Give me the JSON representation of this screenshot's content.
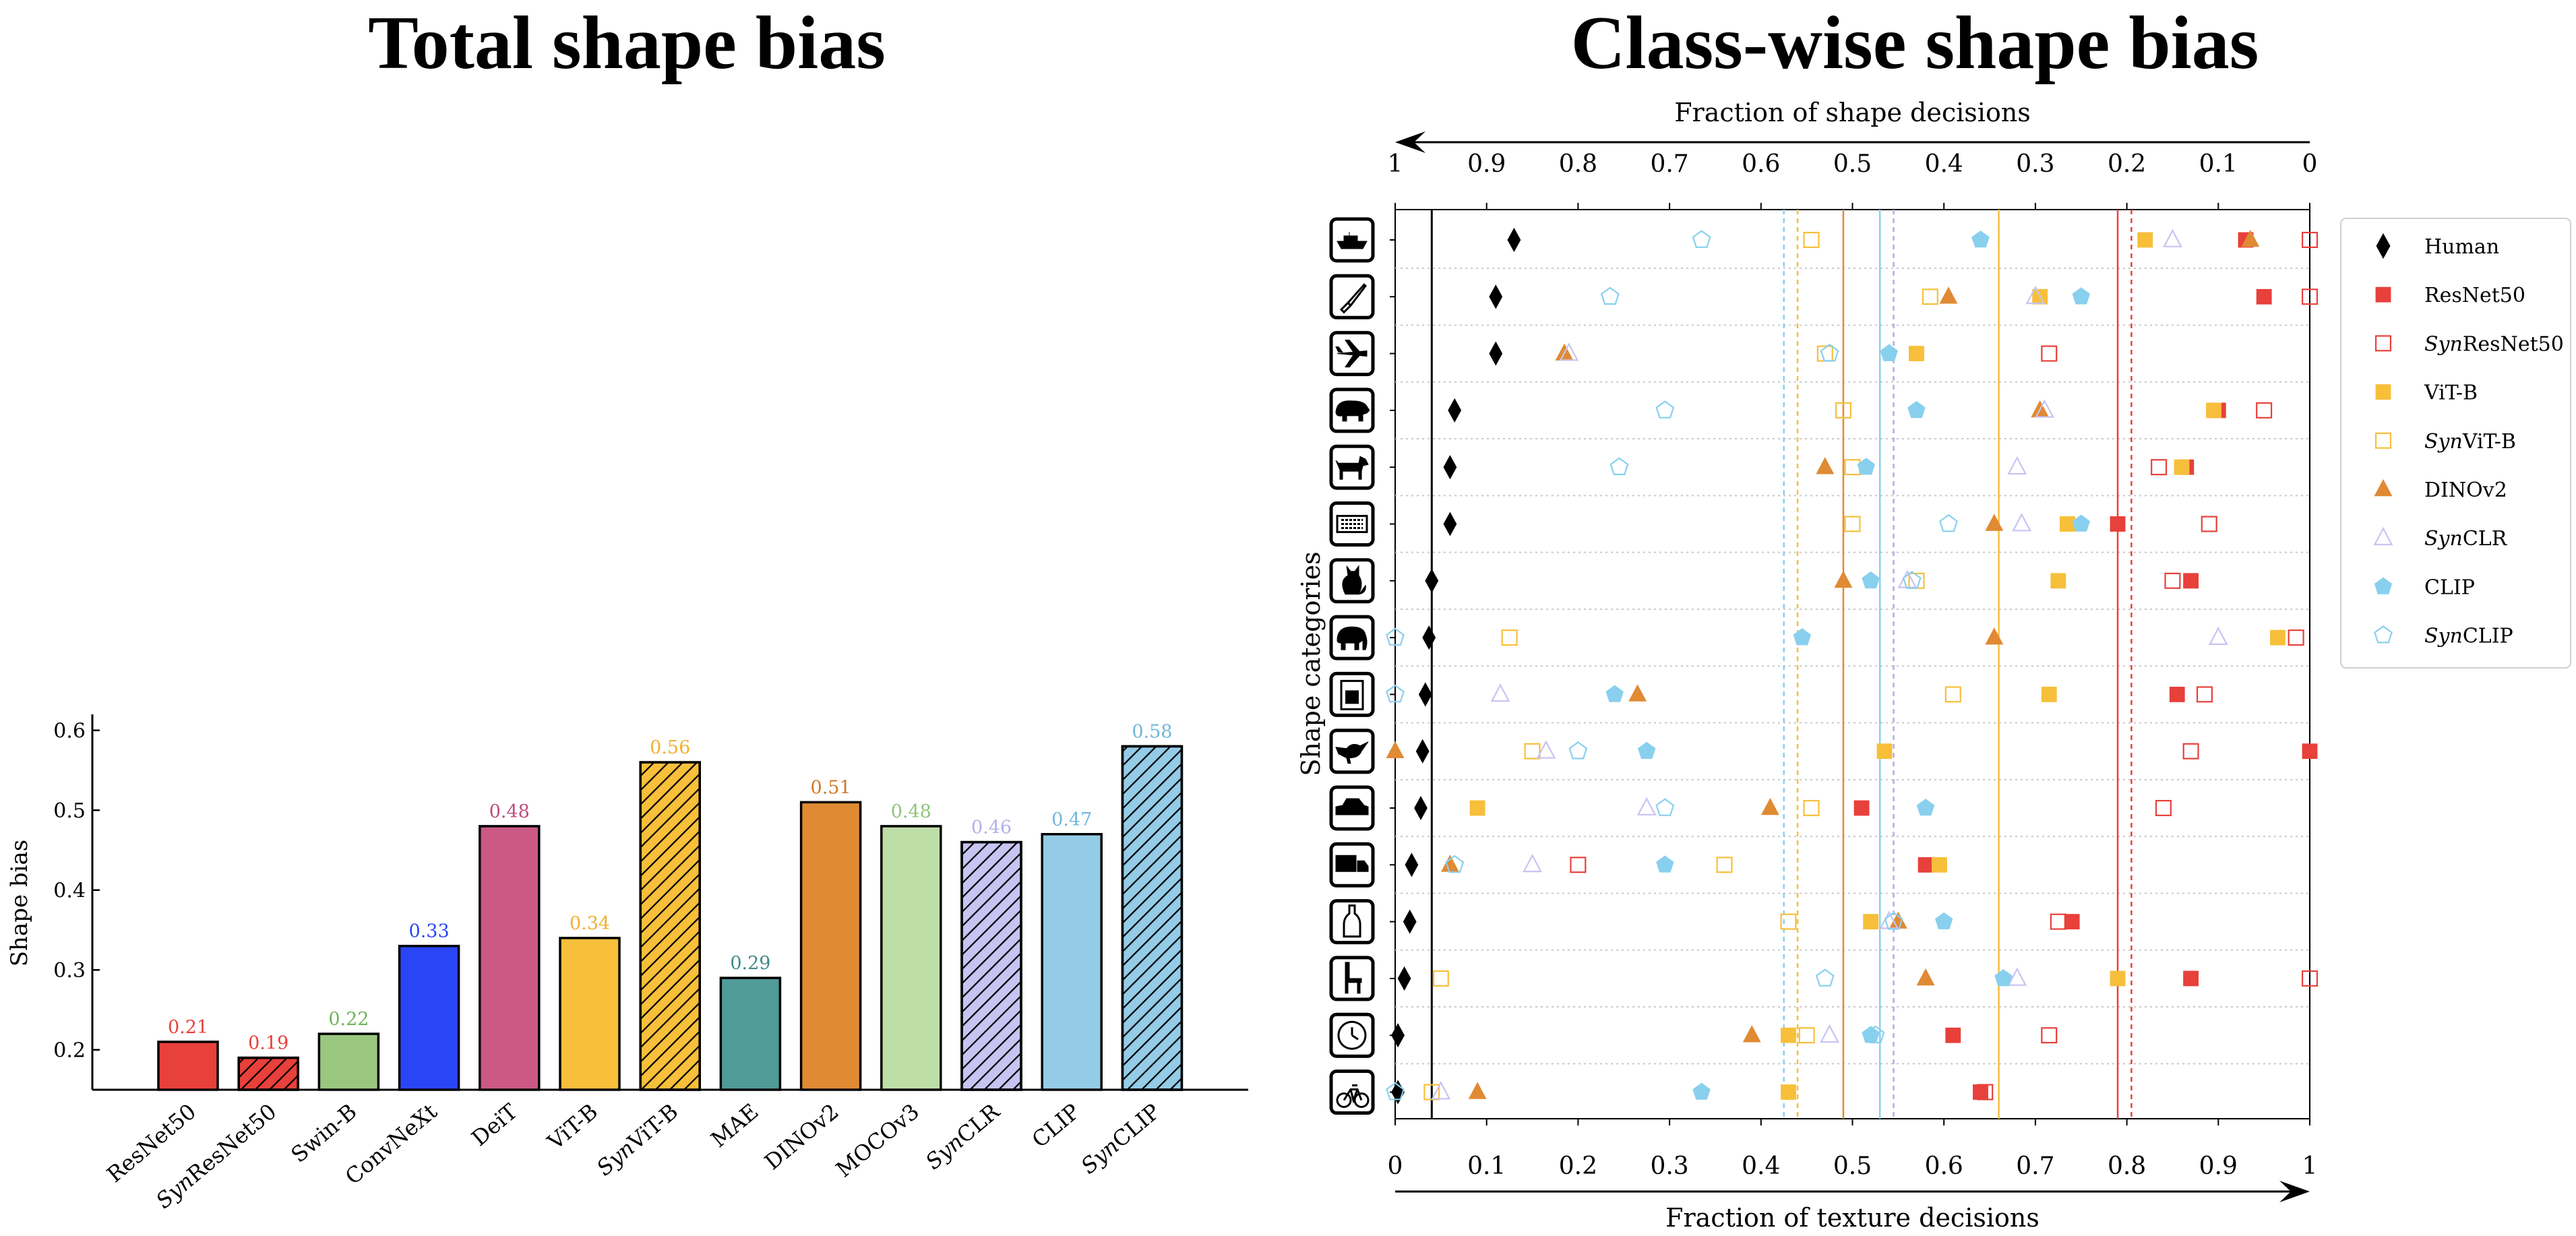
{
  "titles": {
    "left": "Total shape bias",
    "right": "Class-wise shape bias"
  },
  "chart_data": [
    {
      "type": "bar",
      "title": "Total shape bias",
      "ylabel": "Shape bias",
      "xlabel": "",
      "ylim": [
        0.15,
        0.62
      ],
      "yticks": [
        "0.2",
        "0.3",
        "0.4",
        "0.5",
        "0.6"
      ],
      "categories": [
        {
          "pre": "",
          "post": "ResNet50"
        },
        {
          "pre": "Syn",
          "post": "ResNet50"
        },
        {
          "pre": "",
          "post": "Swin-B"
        },
        {
          "pre": "",
          "post": "ConvNeXt"
        },
        {
          "pre": "",
          "post": "DeiT"
        },
        {
          "pre": "",
          "post": "ViT-B"
        },
        {
          "pre": "Syn",
          "post": "ViT-B"
        },
        {
          "pre": "",
          "post": "MAE"
        },
        {
          "pre": "",
          "post": "DINOv2"
        },
        {
          "pre": "",
          "post": "MOCOv3"
        },
        {
          "pre": "Syn",
          "post": "CLR"
        },
        {
          "pre": "",
          "post": "CLIP"
        },
        {
          "pre": "Syn",
          "post": "CLIP"
        }
      ],
      "values": [
        0.21,
        0.19,
        0.22,
        0.33,
        0.48,
        0.34,
        0.56,
        0.29,
        0.51,
        0.48,
        0.46,
        0.47,
        0.58
      ],
      "value_labels": [
        "0.21",
        "0.19",
        "0.22",
        "0.33",
        "0.48",
        "0.34",
        "0.56",
        "0.29",
        "0.51",
        "0.48",
        "0.46",
        "0.47",
        "0.58"
      ],
      "colors": [
        "#e8403a",
        "#e8403a",
        "#9ac77f",
        "#2a45f5",
        "#cc5884",
        "#f7bf3a",
        "#f7bf3a",
        "#509a99",
        "#e08a33",
        "#bedea8",
        "#c7c4f2",
        "#94cbe6",
        "#94cbe6"
      ],
      "label_colors": [
        "#e8403a",
        "#e8403a",
        "#6fb35a",
        "#2a45f5",
        "#c04a7a",
        "#f0b030",
        "#f0b030",
        "#3f8a8a",
        "#d07828",
        "#8fc478",
        "#b4b0ec",
        "#6fb7dc",
        "#6fb7dc"
      ],
      "hatched": [
        false,
        true,
        false,
        false,
        false,
        false,
        true,
        false,
        false,
        false,
        true,
        false,
        true
      ],
      "grid": false
    },
    {
      "type": "scatter",
      "title": "Class-wise shape bias",
      "top_xlabel": "Fraction of shape decisions",
      "bottom_xlabel": "Fraction of texture decisions",
      "ylabel": "Shape categories",
      "xlim": [
        0,
        1
      ],
      "top_ticks": [
        "1",
        "0.9",
        "0.8",
        "0.7",
        "0.6",
        "0.5",
        "0.4",
        "0.3",
        "0.2",
        "0.1",
        "0"
      ],
      "bottom_ticks": [
        "0",
        "0.1",
        "0.2",
        "0.3",
        "0.4",
        "0.5",
        "0.6",
        "0.7",
        "0.8",
        "0.9",
        "1"
      ],
      "categories": [
        "boat",
        "knife",
        "airplane",
        "bear",
        "dog",
        "keyboard",
        "cat",
        "elephant",
        "oven",
        "bird",
        "car",
        "truck",
        "bottle",
        "chair",
        "clock",
        "bicycle"
      ],
      "grid": "horizontal-dotted",
      "legend_position": "right",
      "series": [
        {
          "name": "Human",
          "syn": false,
          "marker": "diamond",
          "filled": true,
          "color": "#000000",
          "x": [
            0.13,
            0.11,
            0.11,
            0.065,
            0.06,
            0.06,
            0.04,
            0.037,
            0.033,
            0.03,
            0.028,
            0.018,
            0.016,
            0.01,
            0.003,
            0.003
          ],
          "mean": 0.04
        },
        {
          "name": "ResNet50",
          "syn": false,
          "marker": "square",
          "filled": true,
          "color": "#e8403a",
          "x": [
            0.93,
            0.95,
            null,
            0.9,
            0.865,
            0.79,
            0.87,
            null,
            0.855,
            1.0,
            0.51,
            0.58,
            0.74,
            0.87,
            0.61,
            0.64
          ],
          "mean": 0.79
        },
        {
          "name": "ResNet50",
          "syn": true,
          "marker": "square",
          "filled": false,
          "color": "#e8403a",
          "x": [
            1.0,
            1.0,
            0.715,
            0.95,
            0.835,
            0.89,
            0.85,
            0.985,
            0.885,
            0.87,
            0.84,
            0.2,
            0.725,
            1.0,
            0.715,
            0.645
          ],
          "mean": 0.805
        },
        {
          "name": "ViT-B",
          "syn": false,
          "marker": "square",
          "filled": true,
          "color": "#f7bf3a",
          "x": [
            0.82,
            0.705,
            0.57,
            0.895,
            0.86,
            0.735,
            0.725,
            0.965,
            0.715,
            0.535,
            0.09,
            0.595,
            0.52,
            0.79,
            0.43,
            0.43
          ],
          "mean": 0.66
        },
        {
          "name": "ViT-B",
          "syn": true,
          "marker": "square",
          "filled": false,
          "color": "#f7bf3a",
          "x": [
            0.455,
            0.585,
            0.47,
            0.49,
            0.5,
            0.5,
            0.57,
            0.125,
            0.61,
            0.15,
            0.455,
            0.36,
            0.43,
            0.05,
            0.45,
            0.04
          ],
          "mean": 0.44
        },
        {
          "name": "DINOv2",
          "syn": false,
          "marker": "triangle",
          "filled": true,
          "color": "#e08a33",
          "x": [
            0.935,
            0.605,
            0.185,
            0.705,
            0.47,
            0.655,
            0.49,
            0.655,
            0.265,
            0.0,
            0.41,
            0.06,
            0.55,
            0.58,
            0.39,
            0.09
          ],
          "mean": 0.49
        },
        {
          "name": "CLR",
          "syn": true,
          "marker": "triangle",
          "filled": false,
          "color": "#c7c4f2",
          "x": [
            0.85,
            0.7,
            0.19,
            0.71,
            0.68,
            0.685,
            0.56,
            0.9,
            0.115,
            0.165,
            0.275,
            0.15,
            0.54,
            0.68,
            0.475,
            0.05
          ],
          "mean": 0.545
        },
        {
          "name": "CLIP",
          "syn": false,
          "marker": "pentagon",
          "filled": true,
          "color": "#88d0ee",
          "x": [
            0.64,
            0.75,
            0.54,
            0.57,
            0.515,
            0.75,
            0.52,
            0.445,
            0.24,
            0.275,
            0.58,
            0.295,
            0.6,
            0.665,
            0.52,
            0.335
          ],
          "mean": 0.53
        },
        {
          "name": "CLIP",
          "syn": true,
          "marker": "pentagon",
          "filled": false,
          "color": "#88d0ee",
          "x": [
            0.335,
            0.235,
            0.475,
            0.295,
            0.245,
            0.605,
            0.565,
            0.0,
            0.0,
            0.2,
            0.295,
            0.065,
            0.545,
            0.47,
            0.525,
            0.0
          ],
          "mean": 0.425
        }
      ]
    }
  ]
}
